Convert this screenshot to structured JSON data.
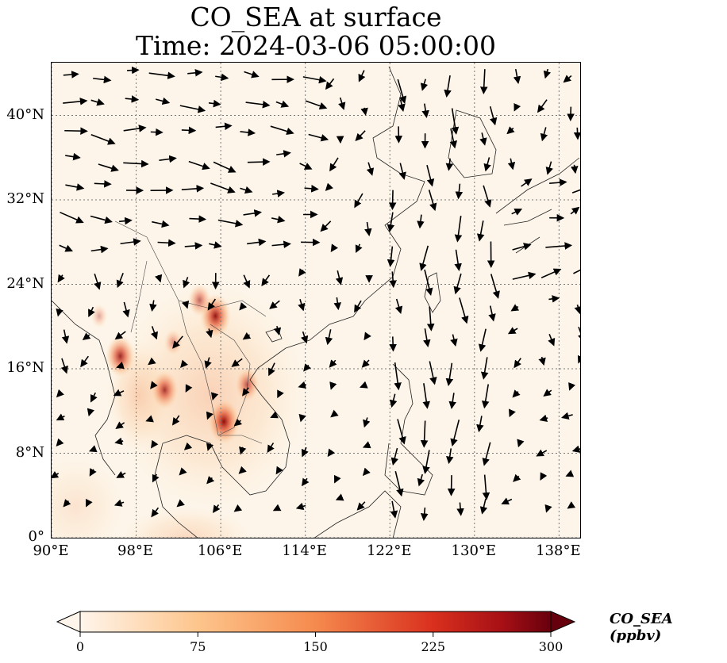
{
  "title": {
    "line1": "CO_SEA at surface",
    "line2": "Time: 2024-03-06 05:00:00"
  },
  "map": {
    "lon_range": [
      90,
      140
    ],
    "lat_range": [
      0,
      45
    ],
    "lon_ticks": [
      {
        "value": 90,
        "label": "90°E"
      },
      {
        "value": 98,
        "label": "98°E"
      },
      {
        "value": 106,
        "label": "106°E"
      },
      {
        "value": 114,
        "label": "114°E"
      },
      {
        "value": 122,
        "label": "122°E"
      },
      {
        "value": 130,
        "label": "130°E"
      },
      {
        "value": 138,
        "label": "138°E"
      }
    ],
    "lat_ticks": [
      {
        "value": 0,
        "label": "0°"
      },
      {
        "value": 8,
        "label": "8°N"
      },
      {
        "value": 16,
        "label": "16°N"
      },
      {
        "value": 24,
        "label": "24°N"
      },
      {
        "value": 32,
        "label": "32°N"
      },
      {
        "value": 40,
        "label": "40°N"
      }
    ],
    "gridlines": true,
    "field_colors": {
      "background": "#fdf5e9",
      "low": "#fde3c2",
      "mid": "#f8a972",
      "high": "#e0502e",
      "max": "#9b0d0d"
    },
    "hotspots": [
      {
        "lon": 105.5,
        "lat": 21.0,
        "value": 250
      },
      {
        "lon": 106.3,
        "lat": 11.0,
        "value": 260
      },
      {
        "lon": 96.5,
        "lat": 17.2,
        "value": 230
      },
      {
        "lon": 100.7,
        "lat": 14.0,
        "value": 210
      },
      {
        "lon": 104.0,
        "lat": 22.5,
        "value": 160
      },
      {
        "lon": 108.5,
        "lat": 14.5,
        "value": 170
      },
      {
        "lon": 101.5,
        "lat": 18.5,
        "value": 110
      },
      {
        "lon": 94.5,
        "lat": 21.0,
        "value": 90
      }
    ]
  },
  "colorbar": {
    "label": "CO_SEA (ppbv)",
    "ticks": [
      {
        "value": 0,
        "label": "0"
      },
      {
        "value": 75,
        "label": "75"
      },
      {
        "value": 150,
        "label": "150"
      },
      {
        "value": 225,
        "label": "225"
      },
      {
        "value": 300,
        "label": "300"
      }
    ],
    "range": [
      0,
      300
    ],
    "colors": [
      "#fff5eb",
      "#fdd0a2",
      "#fd8d3c",
      "#d94801",
      "#a50f15",
      "#67000d"
    ]
  }
}
